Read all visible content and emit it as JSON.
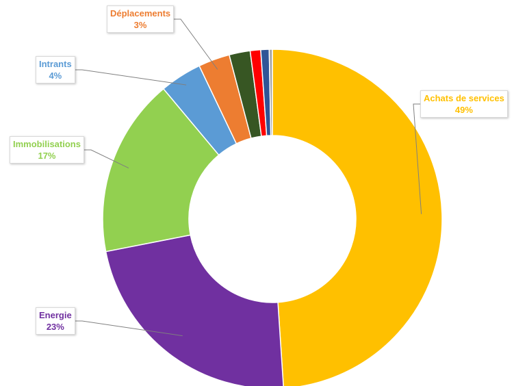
{
  "chart_data": {
    "type": "pie",
    "donut": true,
    "start_angle_deg": 90,
    "direction": "clockwise",
    "slices": [
      {
        "name": "Achats de services",
        "value": 49,
        "label": "Achats de services",
        "pct_label": "49%",
        "color": "#FFC000"
      },
      {
        "name": "Energie",
        "value": 23,
        "label": "Energie",
        "pct_label": "23%",
        "color": "#7030A0"
      },
      {
        "name": "Immobilisations",
        "value": 17,
        "label": "Immobilisations",
        "pct_label": "17%",
        "color": "#92D050"
      },
      {
        "name": "Intrants",
        "value": 4,
        "label": "Intrants",
        "pct_label": "4%",
        "color": "#5B9BD5"
      },
      {
        "name": "Déplacements",
        "value": 3,
        "label": "Déplacements",
        "pct_label": "3%",
        "color": "#ED7D31"
      },
      {
        "name": "",
        "value": 2,
        "label": "",
        "pct_label": "",
        "color": "#375623"
      },
      {
        "name": "",
        "value": 1,
        "label": "",
        "pct_label": "",
        "color": "#FF0000"
      },
      {
        "name": "",
        "value": 0.8,
        "label": "",
        "pct_label": "",
        "color": "#2F5597"
      },
      {
        "name": "",
        "value": 0.3,
        "label": "",
        "pct_label": "",
        "color": "#A5A5A5"
      }
    ]
  }
}
